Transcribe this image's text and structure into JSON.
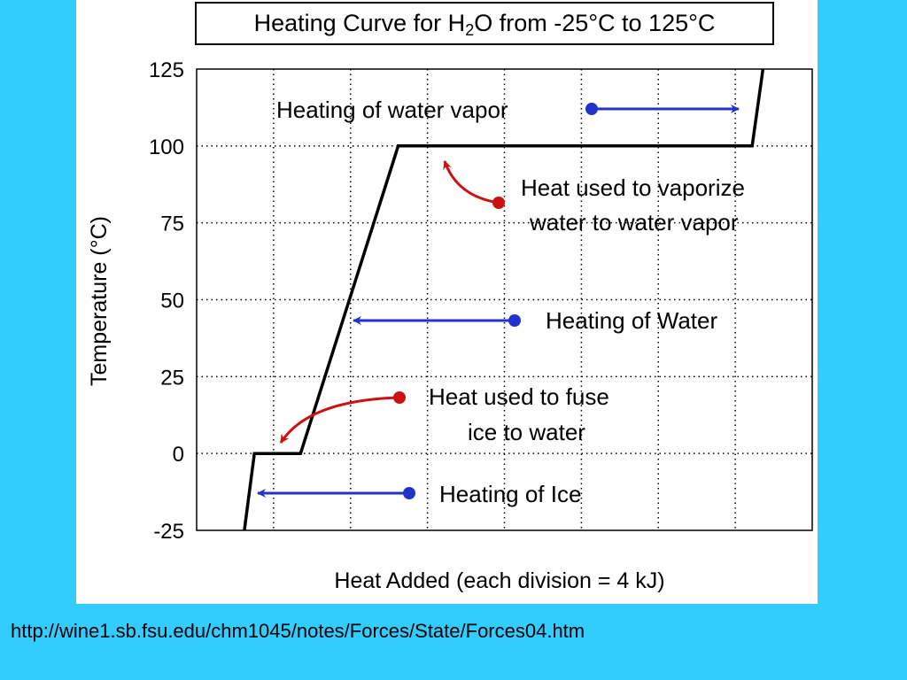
{
  "chart_data": {
    "type": "line",
    "title_prefix": "Heating Curve for H",
    "title_subscript": "2",
    "title_suffix": "O from -25°C to 125°C",
    "xlabel": "Heat Added (each division = 4 kJ)",
    "ylabel": "Temperature (°C)",
    "ylim": [
      -25,
      125
    ],
    "yticks": [
      -25,
      0,
      25,
      50,
      75,
      100,
      125
    ],
    "xlim": [
      0,
      80
    ],
    "xticks": [
      10,
      20,
      30,
      40,
      50,
      60,
      70
    ],
    "grid": true,
    "series": [
      {
        "x": [
          6.2,
          7.5,
          13.5,
          26.2,
          72.2,
          73.6
        ],
        "y": [
          -25,
          0,
          0,
          100,
          100,
          125
        ]
      }
    ],
    "annotations": [
      {
        "lines": [
          "Heating of water vapor"
        ],
        "arrow_color": "#2233cc"
      },
      {
        "lines": [
          "Heat used to vaporize",
          "water to water vapor"
        ],
        "arrow_color": "#cc1111"
      },
      {
        "lines": [
          "Heating of Water"
        ],
        "arrow_color": "#2233cc"
      },
      {
        "lines": [
          "Heat used to fuse",
          "ice to water"
        ],
        "arrow_color": "#cc1111"
      },
      {
        "lines": [
          "Heating of Ice"
        ],
        "arrow_color": "#2233cc"
      }
    ]
  },
  "footer": {
    "source_url": "http://wine1.sb.fsu.edu/chm1045/notes/Forces/State/Forces04.htm"
  },
  "colors": {
    "background": "#33ccff",
    "arrow_blue": "#2233cc",
    "arrow_red": "#cc1111",
    "curve": "#000000"
  }
}
